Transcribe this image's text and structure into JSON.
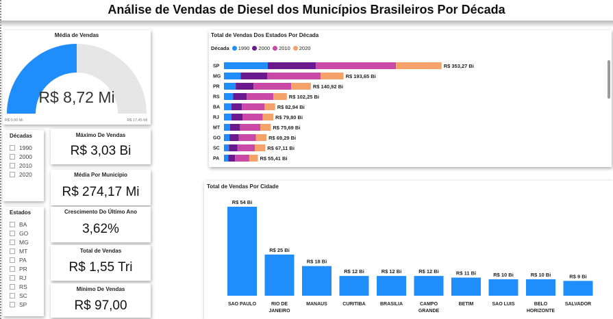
{
  "page": {
    "title": "Análise de Vendas de Diesel dos Municípios Brasileiros Por Década"
  },
  "colors": {
    "blue": "#1f8efa",
    "purple": "#6a1a8c",
    "magenta": "#c94aa6",
    "orange": "#f5a26a",
    "gauge_bg": "#e6e6e6"
  },
  "gauge": {
    "title": "Média de Vendas",
    "value_label": "R$ 8,72 Mi",
    "min_label": "R$ 0,00 Mi",
    "max_label": "R$ 17,45 Mi",
    "fraction": 0.5
  },
  "slicer_decadas": {
    "title": "Décadas",
    "items": [
      "1990",
      "2000",
      "2010",
      "2020"
    ]
  },
  "slicer_estados": {
    "title": "Estados",
    "items": [
      "BA",
      "GO",
      "MG",
      "MT",
      "PA",
      "PR",
      "RJ",
      "RS",
      "SC",
      "SP"
    ]
  },
  "kpis": [
    {
      "title": "Máximo De Vendas",
      "value": "R$ 3,03 Bi"
    },
    {
      "title": "Média Por Município",
      "value": "R$ 274,17 Mi"
    },
    {
      "title": "Crescimento Do Último Ano",
      "value": "3,62%"
    },
    {
      "title": "Total de Vendas",
      "value": "R$ 1,55 Tri"
    },
    {
      "title": "Mínimo De Vendas",
      "value": "R$ 97,00"
    }
  ],
  "chart_data": [
    {
      "type": "bar",
      "orientation": "horizontal",
      "stacked": true,
      "title": "Total de Vendas Dos Estados Por Década",
      "legend_title": "Década",
      "legend_position": "top-left",
      "categories": [
        "SP",
        "MG",
        "PR",
        "RS",
        "BA",
        "RJ",
        "MT",
        "GO",
        "SC",
        "PA"
      ],
      "totals_labels": [
        "R$ 353,27 Bi",
        "R$ 193,65 Bi",
        "R$ 140,92 Bi",
        "R$ 102,25 Bi",
        "R$ 82,94 Bi",
        "R$ 79,80 Bi",
        "R$ 75,69 Bi",
        "R$ 69,29 Bi",
        "R$ 67,11 Bi",
        "R$ 55,41 Bi"
      ],
      "series": [
        {
          "name": "1990",
          "color": "#1f8efa",
          "values": [
            71,
            27,
            19,
            15,
            12,
            12,
            10,
            9,
            8,
            7
          ]
        },
        {
          "name": "2000",
          "color": "#6a1a8c",
          "values": [
            78,
            43,
            29,
            22,
            17,
            18,
            16,
            15,
            14,
            11
          ]
        },
        {
          "name": "2010",
          "color": "#c94aa6",
          "values": [
            130,
            87,
            61,
            43,
            37,
            33,
            33,
            28,
            28,
            23
          ]
        },
        {
          "name": "2020",
          "color": "#f5a26a",
          "values": [
            74,
            37,
            32,
            22,
            17,
            17,
            17,
            17,
            17,
            14
          ]
        }
      ]
    },
    {
      "type": "bar",
      "title": "Total de Vendas Por Cidade",
      "categories": [
        "SAO PAULO",
        "RIO DE JANEIRO",
        "MANAUS",
        "CURITIBA",
        "BRASILIA",
        "CAMPO GRANDE",
        "BETIM",
        "SAO LUIS",
        "BELO HORIZONTE",
        "SALVADOR"
      ],
      "category_lines": [
        [
          "SAO PAULO"
        ],
        [
          "RIO DE",
          "JANEIRO"
        ],
        [
          "MANAUS"
        ],
        [
          "CURITIBA"
        ],
        [
          "BRASILIA"
        ],
        [
          "CAMPO",
          "GRANDE"
        ],
        [
          "BETIM"
        ],
        [
          "SAO LUIS"
        ],
        [
          "BELO",
          "HORIZONTE"
        ],
        [
          "SALVADOR"
        ]
      ],
      "values": [
        54,
        25,
        18,
        12,
        12,
        12,
        11,
        10,
        10,
        9
      ],
      "value_labels": [
        "R$ 54 Bi",
        "R$ 25 Bi",
        "R$ 18 Bi",
        "R$ 12 Bi",
        "R$ 12 Bi",
        "R$ 12 Bi",
        "R$ 11 Bi",
        "R$ 10 Bi",
        "R$ 10 Bi",
        "R$ 9 Bi"
      ],
      "color": "#1f8efa"
    }
  ]
}
